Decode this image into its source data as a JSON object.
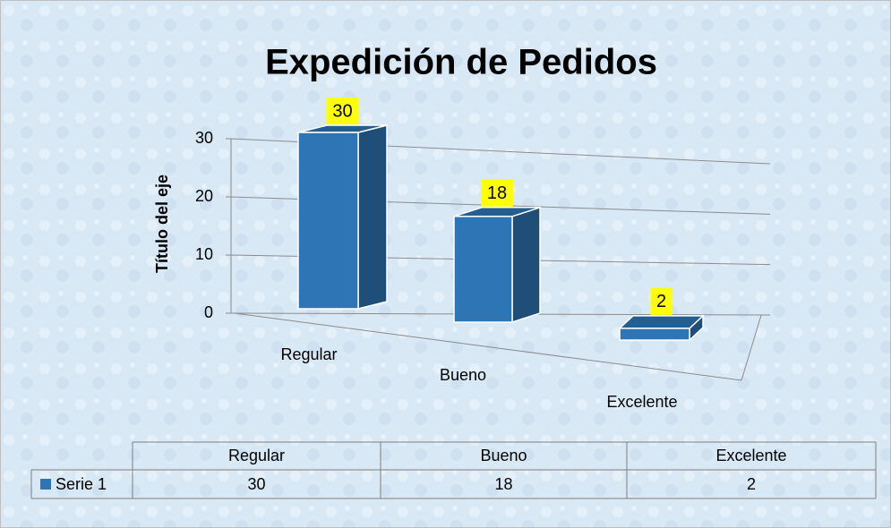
{
  "chart_data": {
    "type": "bar3d",
    "title": "Expedición de Pedidos",
    "y_axis_label": "Título del eje",
    "categories": [
      "Regular",
      "Bueno",
      "Excelente"
    ],
    "series": [
      {
        "name": "Serie 1",
        "color": "#2e75b6",
        "values": [
          30,
          18,
          2
        ]
      }
    ],
    "ylim": [
      0,
      30
    ],
    "yticks": [
      0,
      10,
      20,
      30
    ],
    "grid": true,
    "data_labels": true,
    "data_table": true
  }
}
